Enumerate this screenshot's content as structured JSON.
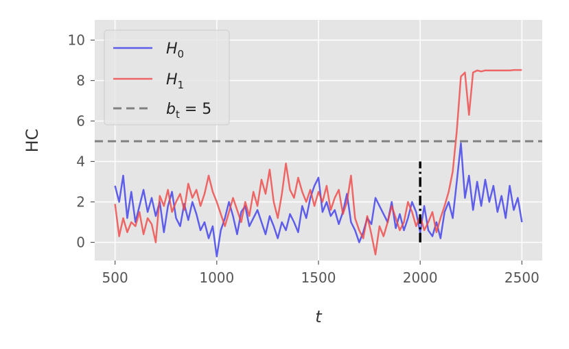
{
  "chart_data": {
    "type": "line",
    "title": "",
    "xlabel": "t",
    "ylabel": "HC",
    "xlim": [
      400,
      2600
    ],
    "ylim": [
      -0.9,
      11
    ],
    "xticks": [
      500,
      1000,
      1500,
      2000,
      2500
    ],
    "yticks": [
      0,
      2,
      4,
      6,
      8,
      10
    ],
    "grid": true,
    "legend_position": "top-left",
    "background": "#E5E5E5",
    "series": [
      {
        "name": "H_0",
        "legend_label": "H",
        "legend_sub": "0",
        "color": "#3B3BEB",
        "opacity": 0.8,
        "x": [
          500,
          520,
          540,
          560,
          580,
          600,
          620,
          640,
          660,
          680,
          700,
          720,
          740,
          760,
          780,
          800,
          820,
          840,
          860,
          880,
          900,
          920,
          940,
          960,
          980,
          1000,
          1020,
          1040,
          1060,
          1080,
          1100,
          1120,
          1140,
          1160,
          1180,
          1200,
          1220,
          1240,
          1260,
          1280,
          1300,
          1320,
          1340,
          1360,
          1380,
          1400,
          1420,
          1440,
          1460,
          1480,
          1500,
          1520,
          1540,
          1560,
          1580,
          1600,
          1620,
          1640,
          1660,
          1680,
          1700,
          1720,
          1740,
          1760,
          1780,
          1800,
          1820,
          1840,
          1860,
          1880,
          1900,
          1920,
          1940,
          1960,
          1980,
          2000,
          2020,
          2040,
          2060,
          2080,
          2100,
          2120,
          2140,
          2160,
          2180,
          2200,
          2220,
          2240,
          2260,
          2280,
          2300,
          2320,
          2340,
          2360,
          2380,
          2400,
          2420,
          2440,
          2460,
          2480,
          2500
        ],
        "values": [
          2.8,
          2.0,
          3.3,
          1.2,
          2.5,
          1.0,
          1.8,
          2.6,
          1.5,
          2.2,
          1.3,
          2.0,
          0.5,
          1.8,
          2.5,
          1.2,
          0.8,
          1.9,
          1.1,
          2.0,
          1.4,
          0.6,
          1.0,
          0.2,
          0.8,
          -0.7,
          0.6,
          1.2,
          2.0,
          1.3,
          0.4,
          1.5,
          1.8,
          0.8,
          1.2,
          1.6,
          1.0,
          0.4,
          1.3,
          0.8,
          0.2,
          1.0,
          0.6,
          1.4,
          1.0,
          0.5,
          1.8,
          1.2,
          2.2,
          2.8,
          3.2,
          1.5,
          2.0,
          1.3,
          1.6,
          0.9,
          1.5,
          2.4,
          1.0,
          0.6,
          0.0,
          0.5,
          1.2,
          0.9,
          2.2,
          1.8,
          1.4,
          1.0,
          2.0,
          0.7,
          1.4,
          0.6,
          1.2,
          2.0,
          1.5,
          0.5,
          1.8,
          0.6,
          0.3,
          1.0,
          0.2,
          1.5,
          2.0,
          1.2,
          3.0,
          4.9,
          2.2,
          3.3,
          1.6,
          3.0,
          1.8,
          3.1,
          2.0,
          2.8,
          1.5,
          2.3,
          1.2,
          2.8,
          1.6,
          2.2,
          1.0
        ]
      },
      {
        "name": "H_1",
        "legend_label": "H",
        "legend_sub": "1",
        "color": "#F04545",
        "opacity": 0.8,
        "x": [
          500,
          520,
          540,
          560,
          580,
          600,
          620,
          640,
          660,
          680,
          700,
          720,
          740,
          760,
          780,
          800,
          820,
          840,
          860,
          880,
          900,
          920,
          940,
          960,
          980,
          1000,
          1020,
          1040,
          1060,
          1080,
          1100,
          1120,
          1140,
          1160,
          1180,
          1200,
          1220,
          1240,
          1260,
          1280,
          1300,
          1320,
          1340,
          1360,
          1380,
          1400,
          1420,
          1440,
          1460,
          1480,
          1500,
          1520,
          1540,
          1560,
          1580,
          1600,
          1620,
          1640,
          1660,
          1680,
          1700,
          1720,
          1740,
          1760,
          1780,
          1800,
          1820,
          1840,
          1860,
          1880,
          1900,
          1920,
          1940,
          1960,
          1980,
          2000,
          2020,
          2040,
          2060,
          2080,
          2100,
          2120,
          2140,
          2160,
          2180,
          2200,
          2220,
          2240,
          2260,
          2280,
          2300,
          2320,
          2340,
          2360,
          2380,
          2400,
          2420,
          2440,
          2460,
          2480,
          2500
        ],
        "values": [
          1.9,
          0.3,
          1.2,
          0.5,
          1.0,
          0.8,
          1.5,
          0.4,
          1.2,
          0.9,
          0.0,
          2.3,
          1.8,
          2.6,
          1.5,
          2.0,
          2.4,
          1.6,
          2.9,
          2.2,
          2.6,
          1.8,
          2.4,
          3.3,
          2.5,
          2.0,
          1.4,
          0.8,
          1.5,
          2.2,
          1.6,
          1.0,
          2.0,
          1.3,
          2.5,
          1.8,
          3.1,
          2.4,
          3.6,
          2.0,
          1.2,
          2.4,
          3.9,
          2.6,
          2.2,
          3.2,
          2.5,
          2.0,
          2.6,
          1.8,
          2.5,
          2.0,
          2.8,
          1.6,
          2.2,
          2.6,
          1.4,
          2.0,
          3.3,
          1.2,
          0.6,
          0.2,
          1.3,
          0.4,
          -0.6,
          0.8,
          0.3,
          1.0,
          1.8,
          1.2,
          0.6,
          1.0,
          2.0,
          1.5,
          0.8,
          1.3,
          0.6,
          1.0,
          1.5,
          0.5,
          1.2,
          1.8,
          2.5,
          3.5,
          5.5,
          8.2,
          8.4,
          6.3,
          8.4,
          8.5,
          8.45,
          8.5,
          8.5,
          8.5,
          8.5,
          8.5,
          8.5,
          8.5,
          8.52,
          8.52,
          8.52
        ]
      }
    ],
    "threshold": {
      "name": "b_t = 5",
      "legend_label": "b",
      "legend_sub": "t",
      "legend_suffix": " = 5",
      "value": 5,
      "color": "#808080"
    },
    "change_marker": {
      "x": 2000,
      "y_range": [
        0,
        4
      ],
      "color": "#000000"
    }
  }
}
